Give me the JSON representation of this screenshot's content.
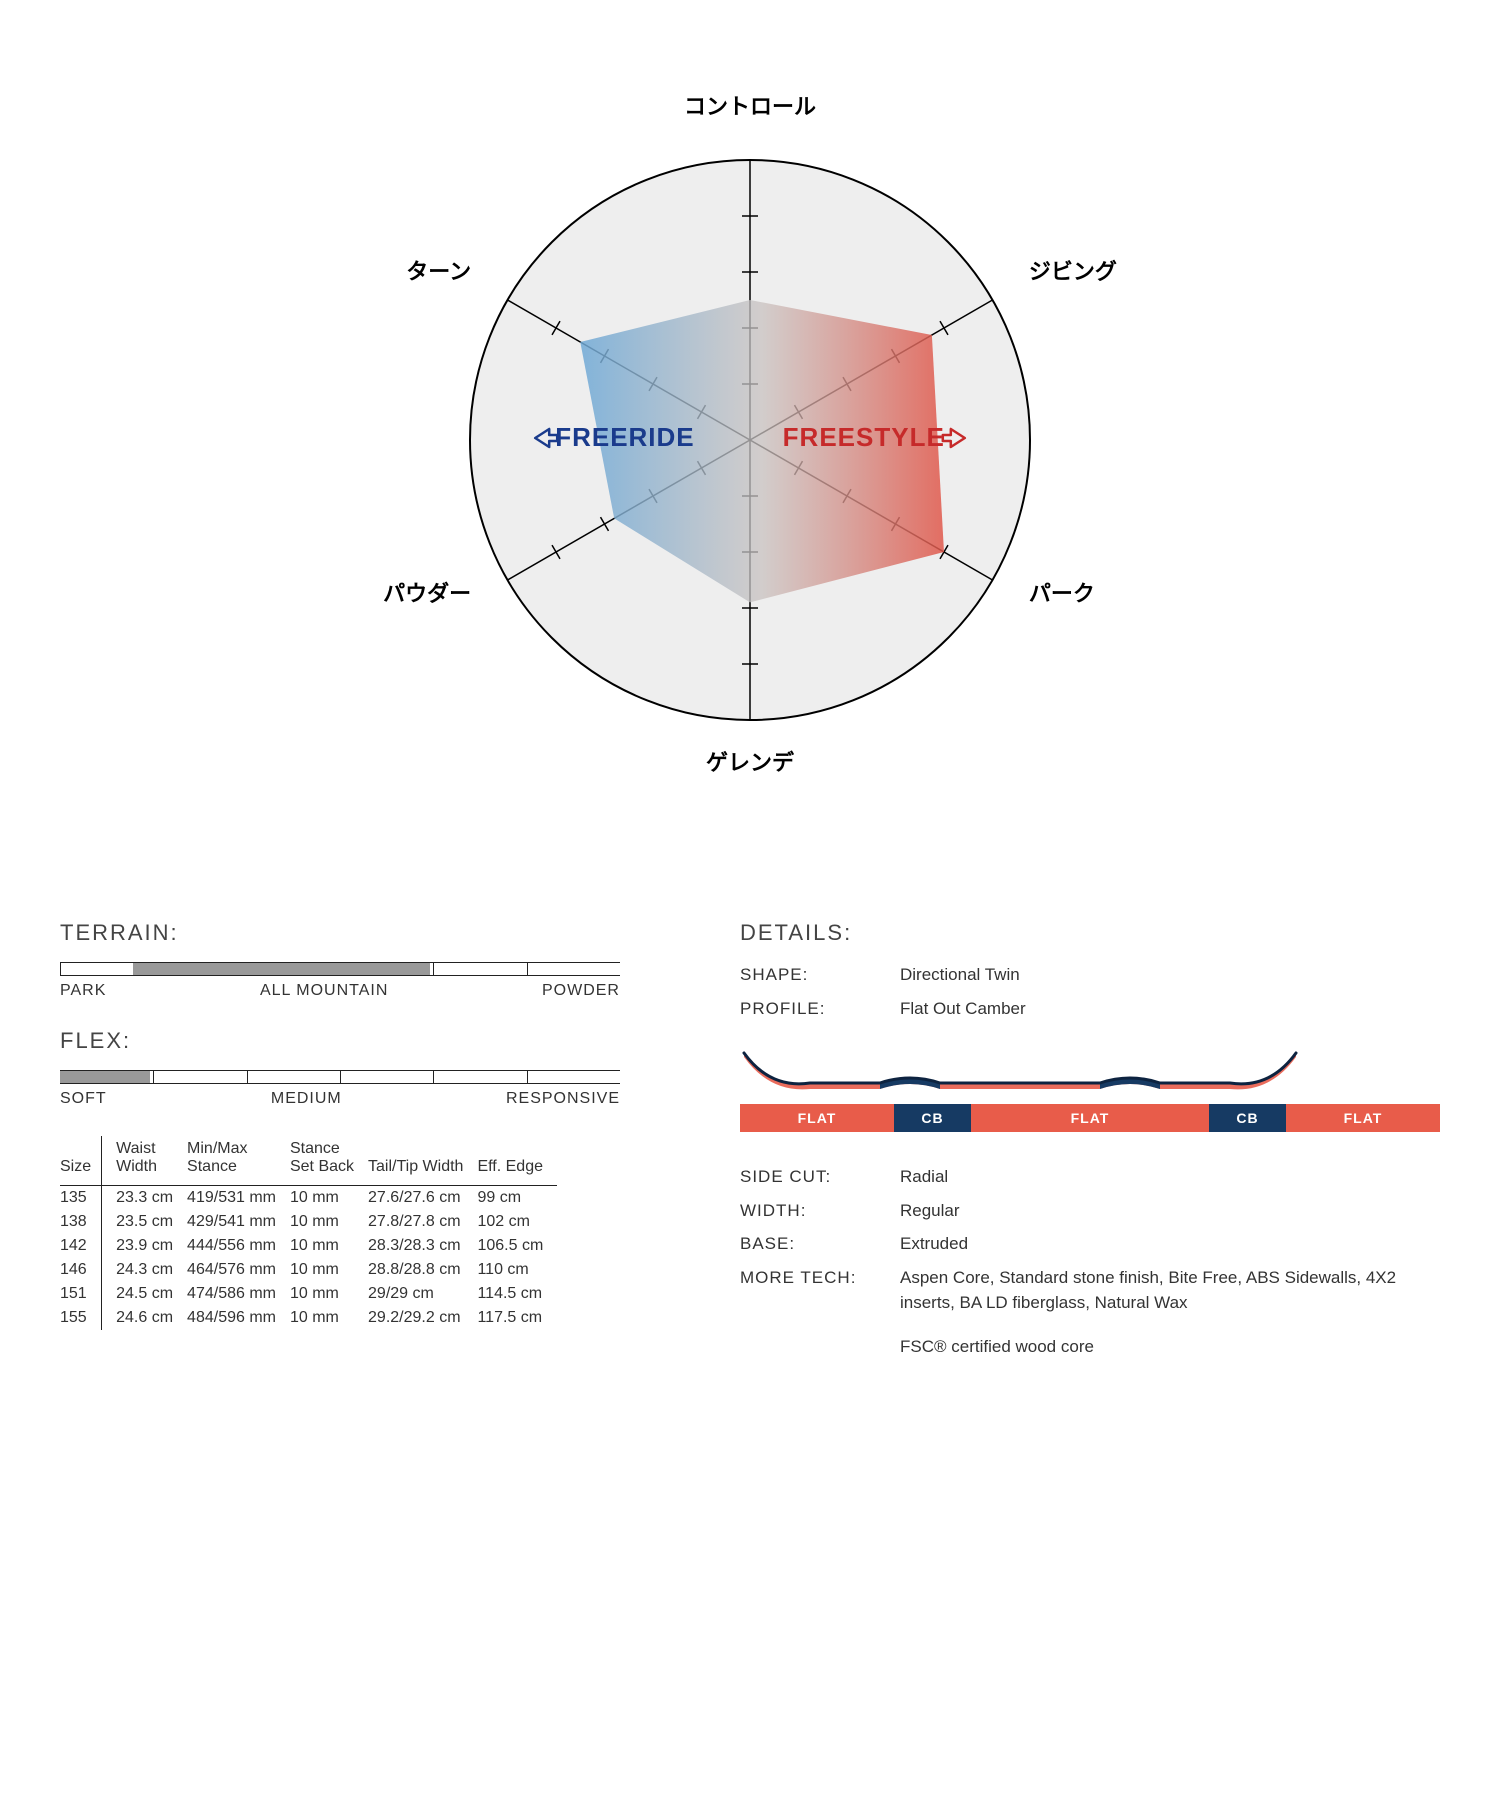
{
  "radar": {
    "type": "radar",
    "radius": 280,
    "background_color": "#eeeeee",
    "outline_color": "#000000",
    "axis_color": "#000000",
    "tick_length": 16,
    "ticks_per_axis": 4,
    "axes": [
      {
        "label": "コントロール",
        "angle_deg": -90
      },
      {
        "label": "ジビング",
        "angle_deg": -30
      },
      {
        "label": "パーク",
        "angle_deg": 30
      },
      {
        "label": "ゲレンデ",
        "angle_deg": 90
      },
      {
        "label": "パウダー",
        "angle_deg": 150
      },
      {
        "label": "ターン",
        "angle_deg": 210
      }
    ],
    "values": [
      0.5,
      0.75,
      0.8,
      0.58,
      0.56,
      0.7
    ],
    "gradient_left": "#6fa9d6",
    "gradient_right": "#e0574a",
    "gradient_mid": "#c9c2c0",
    "center_labels": {
      "left": {
        "text": "FREERIDE",
        "color": "#1a3b8c"
      },
      "right": {
        "text": "FREESTYLE",
        "color": "#c62a2a"
      }
    }
  },
  "terrain": {
    "heading": "TERRAIN:",
    "labels": [
      "PARK",
      "ALL MOUNTAIN",
      "POWDER"
    ],
    "fill_start_pct": 13,
    "fill_end_pct": 66,
    "divisions": 6,
    "bar_color": "#999999",
    "border_color": "#222222"
  },
  "flex": {
    "heading": "FLEX:",
    "labels": [
      "SOFT",
      "MEDIUM",
      "RESPONSIVE"
    ],
    "fill_start_pct": 0,
    "fill_end_pct": 16,
    "divisions": 6,
    "bar_color": "#999999",
    "border_color": "#222222"
  },
  "spec_table": {
    "columns": [
      "Size",
      "Waist\nWidth",
      "Min/Max\nStance",
      "Stance\nSet Back",
      "Tail/Tip Width",
      "Eff. Edge"
    ],
    "rows": [
      [
        "135",
        "23.3 cm",
        "419/531 mm",
        "10 mm",
        "27.6/27.6 cm",
        "99 cm"
      ],
      [
        "138",
        "23.5 cm",
        "429/541 mm",
        "10 mm",
        "27.8/27.8 cm",
        "102 cm"
      ],
      [
        "142",
        "23.9 cm",
        "444/556 mm",
        "10 mm",
        "28.3/28.3 cm",
        "106.5 cm"
      ],
      [
        "146",
        "24.3 cm",
        "464/576 mm",
        "10 mm",
        "28.8/28.8 cm",
        "110 cm"
      ],
      [
        "151",
        "24.5 cm",
        "474/586 mm",
        "10 mm",
        "29/29 cm",
        "114.5 cm"
      ],
      [
        "155",
        "24.6 cm",
        "484/596 mm",
        "10 mm",
        "29.2/29.2 cm",
        "117.5 cm"
      ]
    ]
  },
  "details": {
    "heading": "DETAILS:",
    "rows_top": [
      {
        "label": "SHAPE:",
        "value": "Directional Twin"
      },
      {
        "label": "PROFILE:",
        "value": "Flat Out Camber"
      }
    ],
    "rows_bottom": [
      {
        "label": "SIDE CUT:",
        "value": "Radial"
      },
      {
        "label": "WIDTH:",
        "value": "Regular"
      },
      {
        "label": "BASE:",
        "value": "Extruded"
      },
      {
        "label": "MORE TECH:",
        "value": "Aspen Core, Standard stone finish, Bite Free, ABS Sidewalls, 4X2 inserts, BA LD fiberglass, Natural Wax"
      }
    ],
    "footnote": "FSC® certified wood core"
  },
  "profile_diagram": {
    "colors": {
      "flat": "#e85c4a",
      "cb": "#163a63",
      "outline": "#0d2340"
    },
    "segments": [
      {
        "label": "FLAT",
        "width_pct": 22,
        "color_key": "flat"
      },
      {
        "label": "CB",
        "width_pct": 11,
        "color_key": "cb"
      },
      {
        "label": "FLAT",
        "width_pct": 34,
        "color_key": "flat"
      },
      {
        "label": "CB",
        "width_pct": 11,
        "color_key": "cb"
      },
      {
        "label": "FLAT",
        "width_pct": 22,
        "color_key": "flat"
      }
    ]
  }
}
